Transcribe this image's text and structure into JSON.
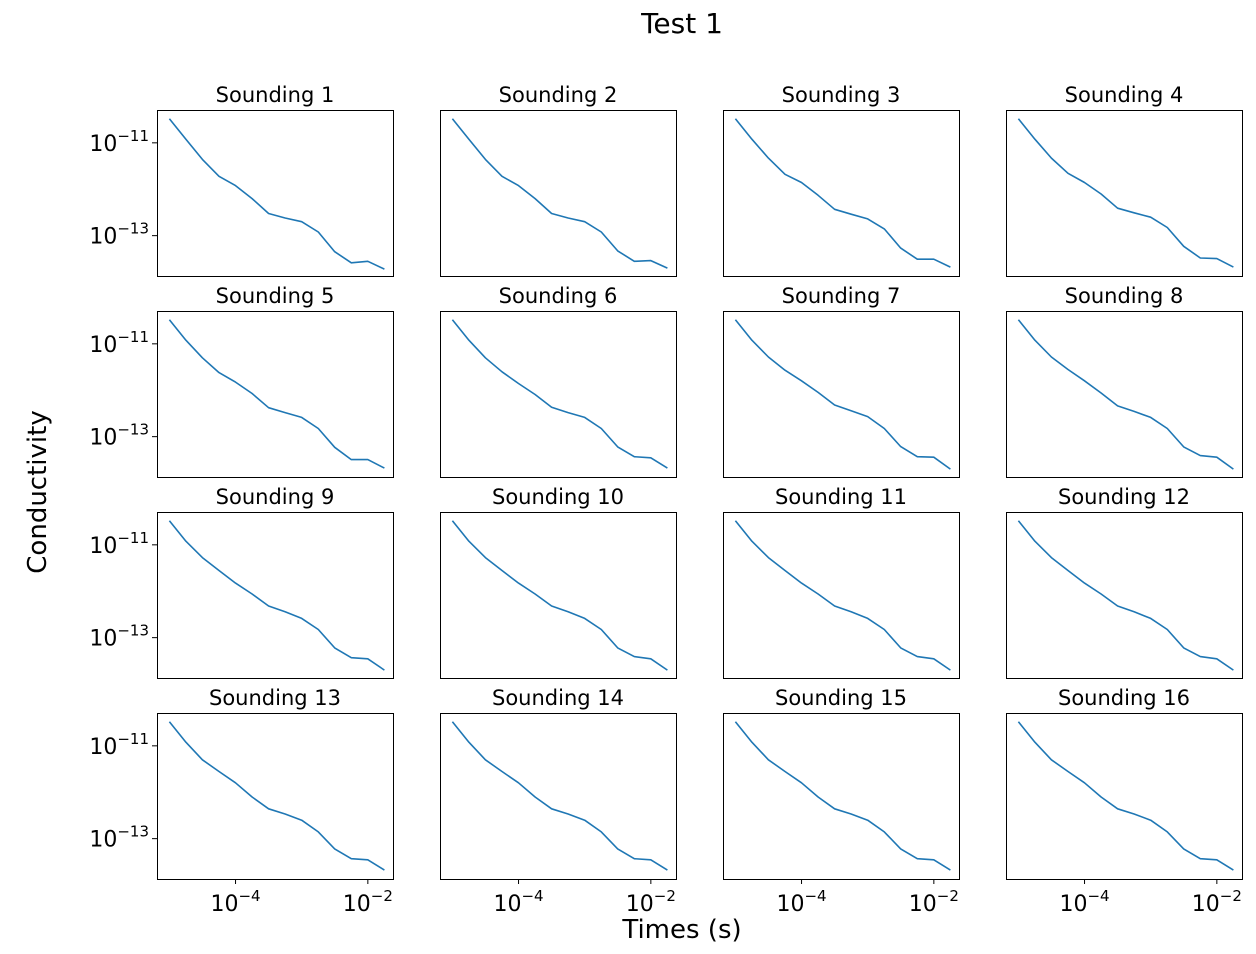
{
  "figure": {
    "title": "Test 1",
    "xlabel": "Times (s)",
    "ylabel": "Conductivity"
  },
  "chart_data": {
    "type": "line",
    "layout": "4x4 grid of small multiples, shared log-scale axes",
    "xscale": "log",
    "yscale": "log",
    "xlim": [
      6.5e-06,
      0.024
    ],
    "ylim": [
      1.35e-14,
      5.1e-11
    ],
    "xticks": [
      {
        "value": 0.0001,
        "base": "10",
        "exp": "−4"
      },
      {
        "value": 0.01,
        "base": "10",
        "exp": "−2"
      }
    ],
    "yticks": [
      {
        "value": 1e-11,
        "base": "10",
        "exp": "−11"
      },
      {
        "value": 1e-13,
        "base": "10",
        "exp": "−13"
      }
    ],
    "grid": false,
    "line_color": "#1f77b4",
    "x": [
      1e-05,
      1.78e-05,
      3.16e-05,
      5.62e-05,
      0.0001,
      0.000178,
      0.000316,
      0.000562,
      0.001,
      0.00178,
      0.00316,
      0.00562,
      0.01,
      0.0178
    ],
    "panels": [
      {
        "title": "Sounding 1",
        "values": [
          3.3e-11,
          1.2e-11,
          4.4e-12,
          1.9e-12,
          1.2e-12,
          6.3e-13,
          3e-13,
          2.4e-13,
          2e-13,
          1.2e-13,
          4.5e-14,
          2.6e-14,
          2.8e-14,
          1.9e-14
        ]
      },
      {
        "title": "Sounding 2",
        "values": [
          3.3e-11,
          1.2e-11,
          4.4e-12,
          1.9e-12,
          1.2e-12,
          6.3e-13,
          3e-13,
          2.4e-13,
          2e-13,
          1.2e-13,
          4.7e-14,
          2.8e-14,
          2.9e-14,
          2e-14
        ]
      },
      {
        "title": "Sounding 3",
        "values": [
          3.3e-11,
          1.2e-11,
          4.7e-12,
          2.1e-12,
          1.4e-12,
          7.4e-13,
          3.7e-13,
          2.9e-13,
          2.3e-13,
          1.4e-13,
          5.4e-14,
          3.1e-14,
          3.1e-14,
          2.1e-14
        ]
      },
      {
        "title": "Sounding 4",
        "values": [
          3.3e-11,
          1.2e-11,
          4.7e-12,
          2.2e-12,
          1.4e-12,
          7.9e-13,
          3.9e-13,
          3.1e-13,
          2.5e-13,
          1.5e-13,
          5.9e-14,
          3.3e-14,
          3.2e-14,
          2.1e-14
        ]
      },
      {
        "title": "Sounding 5",
        "values": [
          3.3e-11,
          1.2e-11,
          5e-12,
          2.4e-12,
          1.5e-12,
          8.5e-13,
          4.2e-13,
          3.3e-13,
          2.6e-13,
          1.5e-13,
          5.9e-14,
          3.2e-14,
          3.2e-14,
          2.1e-14
        ]
      },
      {
        "title": "Sounding 6",
        "values": [
          3.3e-11,
          1.2e-11,
          5e-12,
          2.5e-12,
          1.4e-12,
          8.1e-13,
          4.3e-13,
          3.3e-13,
          2.6e-13,
          1.5e-13,
          6e-14,
          3.7e-14,
          3.5e-14,
          2.1e-14
        ]
      },
      {
        "title": "Sounding 7",
        "values": [
          3.3e-11,
          1.2e-11,
          5.2e-12,
          2.7e-12,
          1.6e-12,
          9e-13,
          4.8e-13,
          3.6e-13,
          2.7e-13,
          1.5e-13,
          6.1e-14,
          3.7e-14,
          3.6e-14,
          2e-14
        ]
      },
      {
        "title": "Sounding 8",
        "values": [
          3.3e-11,
          1.2e-11,
          5.2e-12,
          2.8e-12,
          1.6e-12,
          8.7e-13,
          4.6e-13,
          3.5e-13,
          2.6e-13,
          1.5e-13,
          6e-14,
          3.9e-14,
          3.6e-14,
          2e-14
        ]
      },
      {
        "title": "Sounding 9",
        "values": [
          3.3e-11,
          1.2e-11,
          5.3e-12,
          2.8e-12,
          1.5e-12,
          8.7e-13,
          4.8e-13,
          3.6e-13,
          2.6e-13,
          1.5e-13,
          6e-14,
          3.7e-14,
          3.5e-14,
          2e-14
        ]
      },
      {
        "title": "Sounding 10",
        "values": [
          3.3e-11,
          1.2e-11,
          5.3e-12,
          2.8e-12,
          1.5e-12,
          8.7e-13,
          4.8e-13,
          3.6e-13,
          2.6e-13,
          1.5e-13,
          6e-14,
          3.9e-14,
          3.5e-14,
          2e-14
        ]
      },
      {
        "title": "Sounding 11",
        "values": [
          3.3e-11,
          1.2e-11,
          5.3e-12,
          2.8e-12,
          1.5e-12,
          8.7e-13,
          4.8e-13,
          3.6e-13,
          2.6e-13,
          1.5e-13,
          6e-14,
          3.9e-14,
          3.5e-14,
          2e-14
        ]
      },
      {
        "title": "Sounding 12",
        "values": [
          3.3e-11,
          1.2e-11,
          5.3e-12,
          2.8e-12,
          1.5e-12,
          8.7e-13,
          4.8e-13,
          3.6e-13,
          2.6e-13,
          1.5e-13,
          6e-14,
          3.9e-14,
          3.5e-14,
          2e-14
        ]
      },
      {
        "title": "Sounding 13",
        "values": [
          3.3e-11,
          1.2e-11,
          5e-12,
          2.8e-12,
          1.6e-12,
          7.9e-13,
          4.4e-13,
          3.4e-13,
          2.5e-13,
          1.4e-13,
          6e-14,
          3.7e-14,
          3.5e-14,
          2.1e-14
        ]
      },
      {
        "title": "Sounding 14",
        "values": [
          3.3e-11,
          1.2e-11,
          5e-12,
          2.8e-12,
          1.6e-12,
          7.9e-13,
          4.4e-13,
          3.4e-13,
          2.5e-13,
          1.4e-13,
          6e-14,
          3.7e-14,
          3.5e-14,
          2.1e-14
        ]
      },
      {
        "title": "Sounding 15",
        "values": [
          3.3e-11,
          1.2e-11,
          5e-12,
          2.8e-12,
          1.6e-12,
          7.9e-13,
          4.4e-13,
          3.4e-13,
          2.5e-13,
          1.4e-13,
          6e-14,
          3.7e-14,
          3.5e-14,
          2.1e-14
        ]
      },
      {
        "title": "Sounding 16",
        "values": [
          3.3e-11,
          1.2e-11,
          5e-12,
          2.8e-12,
          1.6e-12,
          7.9e-13,
          4.4e-13,
          3.4e-13,
          2.5e-13,
          1.4e-13,
          6e-14,
          3.7e-14,
          3.5e-14,
          2.1e-14
        ]
      }
    ]
  }
}
